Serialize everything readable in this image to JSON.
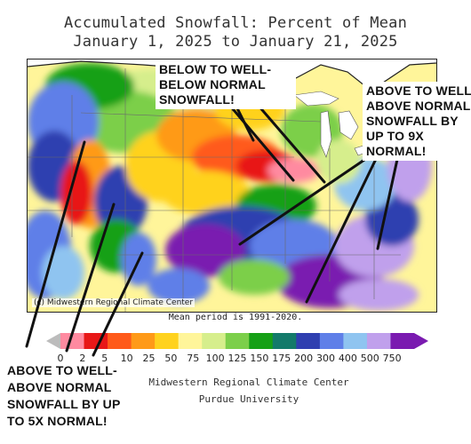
{
  "title": {
    "line1": "Accumulated Snowfall: Percent of Mean",
    "line2": "January 1, 2025 to January 21, 2025"
  },
  "map": {
    "credit": "(c) Midwestern Regional Climate Center",
    "mean_period": "Mean period is 1991-2020."
  },
  "legend": {
    "ticks": [
      "0",
      "2",
      "5",
      "10",
      "25",
      "50",
      "75",
      "100",
      "125",
      "150",
      "175",
      "200",
      "300",
      "400",
      "500",
      "750"
    ],
    "colors": [
      "#bcbcbc",
      "#ff8aa0",
      "#e81818",
      "#ff5a1a",
      "#ff9a18",
      "#ffd21e",
      "#fff59a",
      "#d6ee8c",
      "#7ccf4a",
      "#16a016",
      "#137a6a",
      "#2f3fb0",
      "#5f7fe8",
      "#8fc4f0",
      "#c0a0ec",
      "#7a1ab0"
    ]
  },
  "footer": {
    "line1": "Midwestern Regional Climate Center",
    "line2": "Purdue University"
  },
  "annotations": {
    "below": [
      "BELOW TO WELL-",
      "BELOW NORMAL",
      "SNOWFALL!"
    ],
    "above_east": [
      "ABOVE TO WELL",
      "ABOVE NORMAL",
      "SNOWFALL BY",
      "UP TO 9X",
      "NORMAL!"
    ],
    "above_west": [
      "ABOVE TO WELL-",
      "ABOVE NORMAL",
      "SNOWFALL BY UP",
      "TO 5X NORMAL!"
    ]
  }
}
